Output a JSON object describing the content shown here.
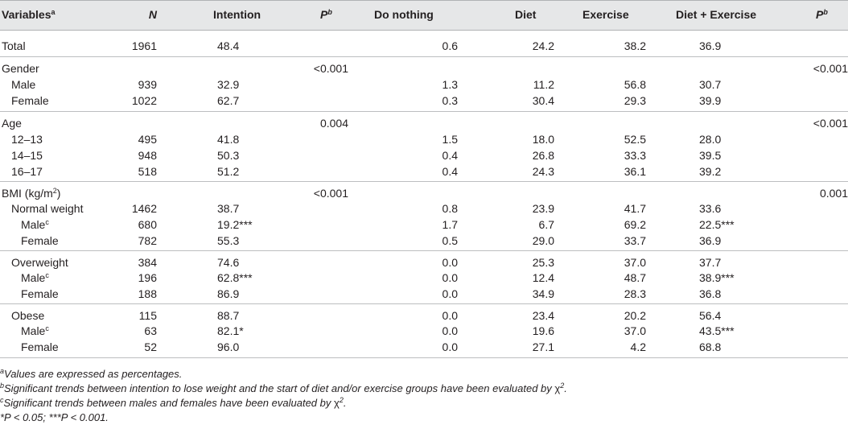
{
  "headers": {
    "variables": "Variables",
    "variables_sup": "a",
    "n": "N",
    "intention": "Intention",
    "p1": "P",
    "p1_sup": "b",
    "do_nothing": "Do nothing",
    "diet": "Diet",
    "exercise": "Exercise",
    "diet_exercise": "Diet + Exercise",
    "p2": "P",
    "p2_sup": "b"
  },
  "rows": [
    {
      "label": "Total",
      "sup": "",
      "n": "1961",
      "intention": "48.4",
      "p1": "",
      "do_nothing": "0.6",
      "diet": "24.2",
      "exercise": "38.2",
      "diet_exercise": "36.9",
      "p2": ""
    },
    {
      "label": "Gender",
      "sup": "",
      "n": "",
      "intention": "",
      "p1": "<0.001",
      "do_nothing": "",
      "diet": "",
      "exercise": "",
      "diet_exercise": "",
      "p2": "<0.001"
    },
    {
      "label": "Male",
      "sup": "",
      "n": "939",
      "intention": "32.9",
      "p1": "",
      "do_nothing": "1.3",
      "diet": "11.2",
      "exercise": "56.8",
      "diet_exercise": "30.7",
      "p2": ""
    },
    {
      "label": "Female",
      "sup": "",
      "n": "1022",
      "intention": "62.7",
      "p1": "",
      "do_nothing": "0.3",
      "diet": "30.4",
      "exercise": "29.3",
      "diet_exercise": "39.9",
      "p2": ""
    },
    {
      "label": "Age",
      "sup": "",
      "n": "",
      "intention": "",
      "p1": "0.004",
      "do_nothing": "",
      "diet": "",
      "exercise": "",
      "diet_exercise": "",
      "p2": "<0.001"
    },
    {
      "label": "12–13",
      "sup": "",
      "n": "495",
      "intention": "41.8",
      "p1": "",
      "do_nothing": "1.5",
      "diet": "18.0",
      "exercise": "52.5",
      "diet_exercise": "28.0",
      "p2": ""
    },
    {
      "label": "14–15",
      "sup": "",
      "n": "948",
      "intention": "50.3",
      "p1": "",
      "do_nothing": "0.4",
      "diet": "26.8",
      "exercise": "33.3",
      "diet_exercise": "39.5",
      "p2": ""
    },
    {
      "label": "16–17",
      "sup": "",
      "n": "518",
      "intention": "51.2",
      "p1": "",
      "do_nothing": "0.4",
      "diet": "24.3",
      "exercise": "36.1",
      "diet_exercise": "39.2",
      "p2": ""
    },
    {
      "label": "BMI (kg/m",
      "sup": "2",
      "label_tail": ")",
      "n": "",
      "intention": "",
      "p1": "<0.001",
      "do_nothing": "",
      "diet": "",
      "exercise": "",
      "diet_exercise": "",
      "p2": "0.001"
    },
    {
      "label": "Normal weight",
      "sup": "",
      "n": "1462",
      "intention": "38.7",
      "p1": "",
      "do_nothing": "0.8",
      "diet": "23.9",
      "exercise": "41.7",
      "diet_exercise": "33.6",
      "p2": ""
    },
    {
      "label": "Male",
      "sup": "c",
      "n": "680",
      "intention": "19.2***",
      "p1": "",
      "do_nothing": "1.7",
      "diet": "6.7",
      "exercise": "69.2",
      "diet_exercise": "22.5***",
      "p2": ""
    },
    {
      "label": "Female",
      "sup": "",
      "n": "782",
      "intention": "55.3",
      "p1": "",
      "do_nothing": "0.5",
      "diet": "29.0",
      "exercise": "33.7",
      "diet_exercise": "36.9",
      "p2": ""
    },
    {
      "label": "Overweight",
      "sup": "",
      "n": "384",
      "intention": "74.6",
      "p1": "",
      "do_nothing": "0.0",
      "diet": "25.3",
      "exercise": "37.0",
      "diet_exercise": "37.7",
      "p2": ""
    },
    {
      "label": "Male",
      "sup": "c",
      "n": "196",
      "intention": "62.8***",
      "p1": "",
      "do_nothing": "0.0",
      "diet": "12.4",
      "exercise": "48.7",
      "diet_exercise": "38.9***",
      "p2": ""
    },
    {
      "label": "Female",
      "sup": "",
      "n": "188",
      "intention": "86.9",
      "p1": "",
      "do_nothing": "0.0",
      "diet": "34.9",
      "exercise": "28.3",
      "diet_exercise": "36.8",
      "p2": ""
    },
    {
      "label": "Obese",
      "sup": "",
      "n": "115",
      "intention": "88.7",
      "p1": "",
      "do_nothing": "0.0",
      "diet": "23.4",
      "exercise": "20.2",
      "diet_exercise": "56.4",
      "p2": ""
    },
    {
      "label": "Male",
      "sup": "c",
      "n": "63",
      "intention": "82.1*",
      "p1": "",
      "do_nothing": "0.0",
      "diet": "19.6",
      "exercise": "37.0",
      "diet_exercise": "43.5***",
      "p2": ""
    },
    {
      "label": "Female",
      "sup": "",
      "n": "52",
      "intention": "96.0",
      "p1": "",
      "do_nothing": "0.0",
      "diet": "27.1",
      "exercise": "4.2",
      "diet_exercise": "68.8",
      "p2": ""
    }
  ],
  "footnotes": {
    "a_sup": "a",
    "a_text": "Values are expressed as percentages.",
    "b_sup": "b",
    "b_text": "Significant trends between intention to lose weight and the start of diet and/or exercise groups have been evaluated by ",
    "c_sup": "c",
    "c_text": "Significant trends between males and females have been evaluated by ",
    "chi": "χ",
    "chi_sup": "2",
    "period": ".",
    "sig": "*P < 0.05; ***P < 0.001."
  }
}
